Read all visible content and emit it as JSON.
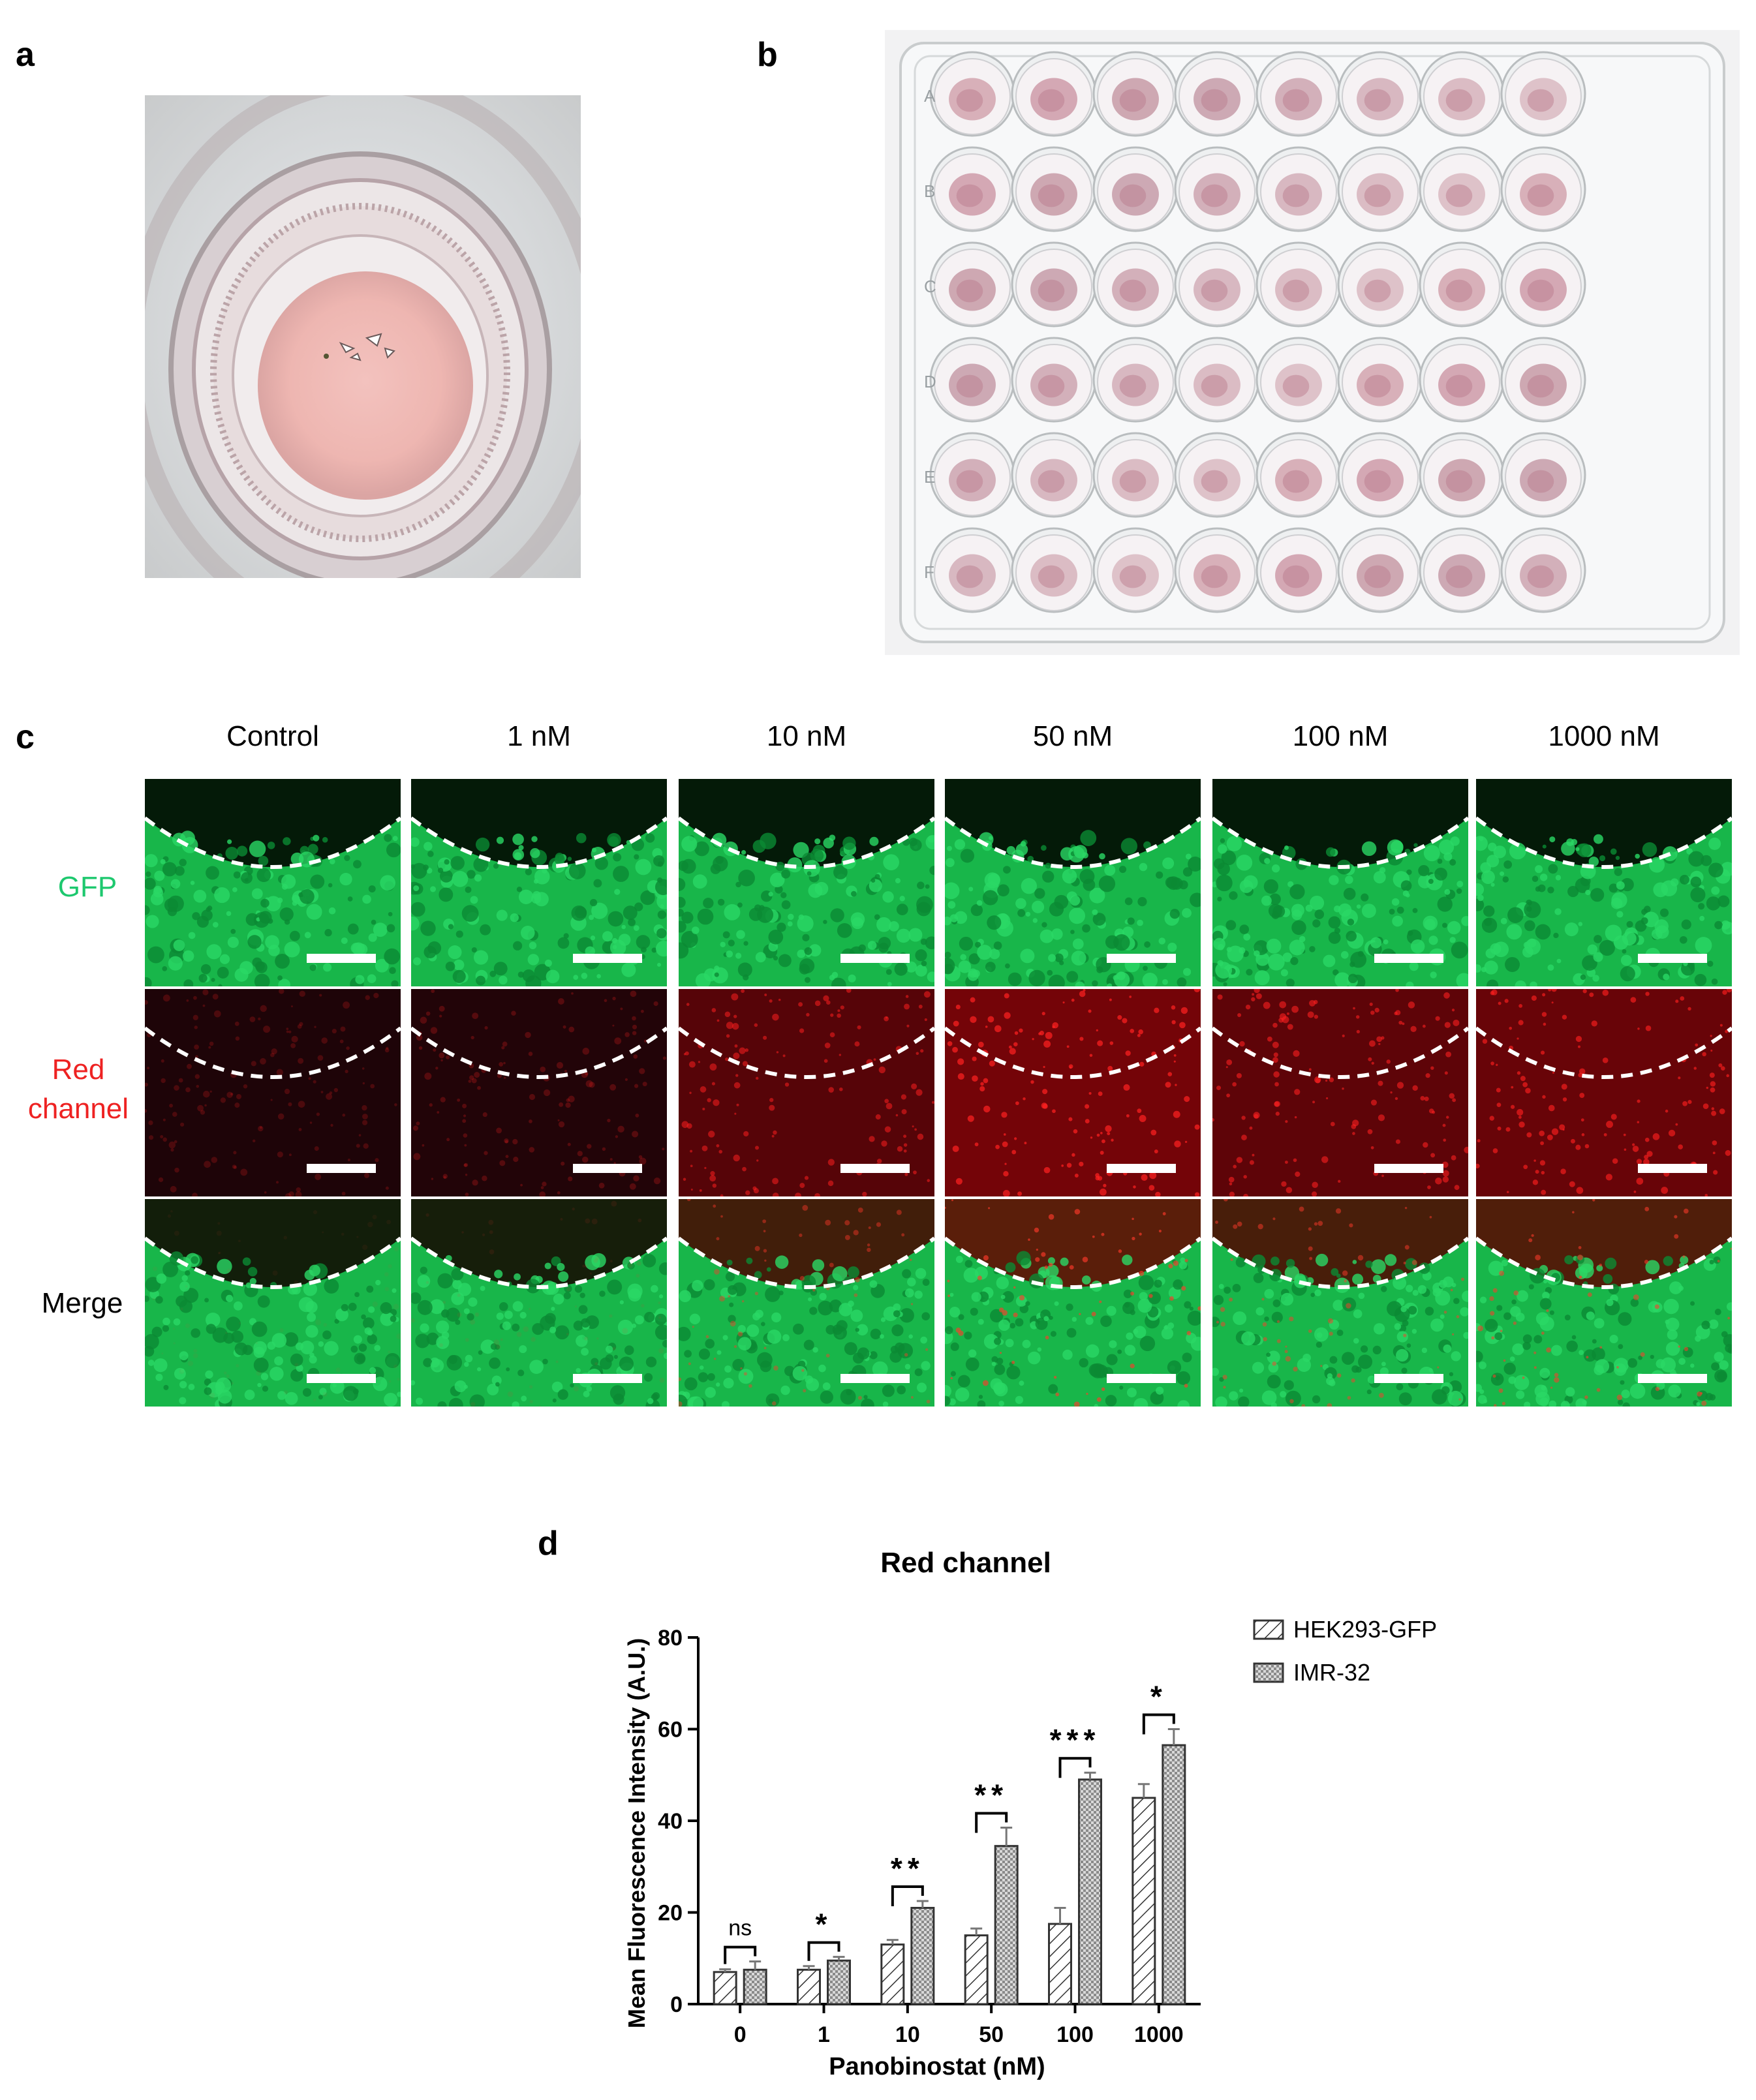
{
  "figure": {
    "panels": {
      "a": {
        "letter": "a"
      },
      "b": {
        "letter": "b",
        "row_letters": [
          "A",
          "B",
          "C",
          "D",
          "E",
          "F"
        ]
      },
      "c": {
        "letter": "c",
        "columns": [
          "Control",
          "1 nM",
          "10 nM",
          "50 nM",
          "100 nM",
          "1000 nM"
        ],
        "rows": [
          {
            "label_lines": [
              "GFP"
            ],
            "color": "#1dc86e"
          },
          {
            "label_lines": [
              "Red",
              "channel"
            ],
            "color": "#ee2222"
          },
          {
            "label_lines": [
              "Merge"
            ],
            "color": "#000000"
          }
        ]
      },
      "d": {
        "letter": "d"
      }
    }
  },
  "chart_data": {
    "type": "bar",
    "title": "Red channel",
    "xlabel": "Panobinostat (nM)",
    "ylabel": "Mean Fluorescence Intensity (A.U.)",
    "ylim": [
      0,
      80
    ],
    "yticks": [
      0,
      20,
      40,
      60,
      80
    ],
    "categories": [
      "0",
      "1",
      "10",
      "50",
      "100",
      "1000"
    ],
    "series": [
      {
        "name": "HEK293-GFP",
        "pattern": "diagonal-hatch",
        "values": [
          7,
          7.5,
          13,
          15,
          17.5,
          45
        ],
        "errors": [
          0.6,
          0.8,
          1.0,
          1.5,
          3.5,
          3.0
        ]
      },
      {
        "name": "IMR-32",
        "pattern": "checker",
        "values": [
          7.5,
          9.5,
          21,
          34.5,
          49,
          56.5
        ],
        "errors": [
          1.8,
          0.8,
          1.5,
          4.0,
          1.5,
          3.5
        ]
      }
    ],
    "significance": [
      "ns",
      "*",
      "**",
      "**",
      "***",
      "*"
    ],
    "legend_position": "top-right",
    "grid": false
  }
}
